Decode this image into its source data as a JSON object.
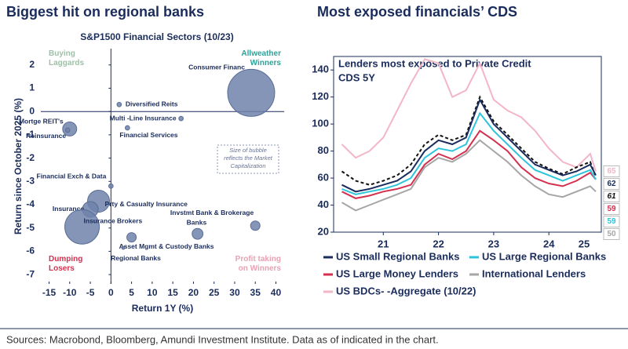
{
  "chart_data": [
    {
      "type": "bubble",
      "panel_title": "Biggest hit on regional banks",
      "title": "S&P1500 Financial Sectors (10/23)",
      "x_label": "Return 1Y (%)",
      "y_label": "Return since October 2025 (%)",
      "xlim": [
        -17,
        42
      ],
      "ylim": [
        -7.4,
        2.7
      ],
      "xticks": [
        -15,
        -10,
        -5,
        0,
        5,
        10,
        15,
        20,
        25,
        30,
        35,
        40
      ],
      "yticks": [
        -7,
        -6,
        -5,
        -4,
        -3,
        -2,
        -1,
        0,
        1,
        2
      ],
      "color": "#6f82aa",
      "labels": [
        "Consumer Financ",
        "Diversified Reits",
        "Mortge REIT's",
        "Reinsurance",
        "Multi -Line Insurance",
        "Financial Services",
        "Financial Exch & Data",
        "Prty & Casualty Insurance",
        "Insurance",
        "Insurance Brokers",
        "Invstmt Bank & Brokerage",
        "Banks",
        "Asset Mgmt & Custody Banks",
        "Regional Banks"
      ],
      "x": [
        34,
        2,
        -10,
        -10.5,
        17,
        4,
        0,
        -3,
        -5,
        -7,
        35,
        21,
        5,
        3
      ],
      "y": [
        0.8,
        0.3,
        -0.75,
        -0.8,
        -0.3,
        -0.7,
        -3.2,
        -3.85,
        -4.2,
        -4.95,
        -4.9,
        -5.25,
        -5.4,
        -5.85
      ],
      "sizes": [
        225,
        2,
        20,
        2,
        2,
        2,
        2,
        49,
        25,
        121,
        9,
        12,
        9,
        1
      ],
      "quadrant_labels": [
        {
          "text": "Buying Laggards",
          "corner": "top-left",
          "color": "#9fbfa8"
        },
        {
          "text": "Allweather Winners",
          "corner": "top-right",
          "color": "#2aa39a"
        },
        {
          "text": "Dumping Losers",
          "corner": "bottom-left",
          "color": "#d4304f"
        },
        {
          "text": "Profit taking on Winners",
          "corner": "bottom-right",
          "color": "#e8a2b4"
        }
      ],
      "note": "Size of bubble reflects the Market Capitalization"
    },
    {
      "type": "line",
      "panel_title": "Most exposed financials’ CDS",
      "title": [
        "Lenders most exposed to Private Credit",
        "CDS 5Y"
      ],
      "xlim": [
        2020.6,
        2025.45
      ],
      "ylim": [
        20,
        150
      ],
      "xticks": [
        {
          "value": 2021.5,
          "label": "21"
        },
        {
          "value": 2022.5,
          "label": "22"
        },
        {
          "value": 2023.5,
          "label": "23"
        },
        {
          "value": 2024.5,
          "label": "24"
        },
        {
          "value": 2025.5,
          "label": "25"
        }
      ],
      "yticks": [
        20,
        40,
        60,
        80,
        100,
        120,
        140
      ],
      "x": [
        2020.75,
        2021,
        2021.25,
        2021.5,
        2021.75,
        2022,
        2022.25,
        2022.5,
        2022.75,
        2023,
        2023.25,
        2023.5,
        2023.75,
        2024,
        2024.25,
        2024.5,
        2024.75,
        2025,
        2025.25,
        2025.35
      ],
      "series": [
        {
          "name": "US BDCs- -Aggregate (10/22)",
          "color": "#f2b6c6",
          "dash": false,
          "values": [
            85,
            75,
            80,
            90,
            110,
            130,
            148,
            145,
            120,
            125,
            145,
            118,
            110,
            105,
            95,
            82,
            72,
            68,
            78,
            65
          ]
        },
        {
          "name": "International Lenders",
          "color": "#a6a6a6",
          "dash": false,
          "values": [
            42,
            36,
            40,
            44,
            48,
            52,
            68,
            75,
            72,
            78,
            88,
            80,
            72,
            62,
            54,
            48,
            46,
            50,
            54,
            50
          ]
        },
        {
          "name": "US Large Money Lenders",
          "color": "#d4304f",
          "dash": false,
          "values": [
            50,
            45,
            47,
            50,
            52,
            55,
            70,
            78,
            74,
            80,
            95,
            88,
            80,
            68,
            60,
            56,
            54,
            58,
            64,
            59
          ]
        },
        {
          "name": "US Large Regional Banks",
          "color": "#2ec4dc",
          "dash": false,
          "values": [
            52,
            48,
            50,
            52,
            55,
            60,
            75,
            82,
            80,
            85,
            108,
            95,
            85,
            75,
            66,
            62,
            58,
            62,
            66,
            59
          ]
        },
        {
          "name": null,
          "color": "#111111",
          "dash": true,
          "values": [
            65,
            58,
            55,
            58,
            62,
            70,
            85,
            92,
            88,
            92,
            120,
            102,
            92,
            82,
            72,
            67,
            63,
            68,
            72,
            61
          ]
        },
        {
          "name": "US Small Regional Banks",
          "color": "#1a2c5b",
          "dash": false,
          "values": [
            55,
            50,
            52,
            55,
            58,
            65,
            80,
            88,
            85,
            90,
            118,
            100,
            90,
            80,
            70,
            66,
            62,
            65,
            70,
            62
          ]
        }
      ]
    }
  ],
  "footer": "Sources: Macrobond, Bloomberg, Amundi Investment Institute. Data as of indicated in the chart."
}
